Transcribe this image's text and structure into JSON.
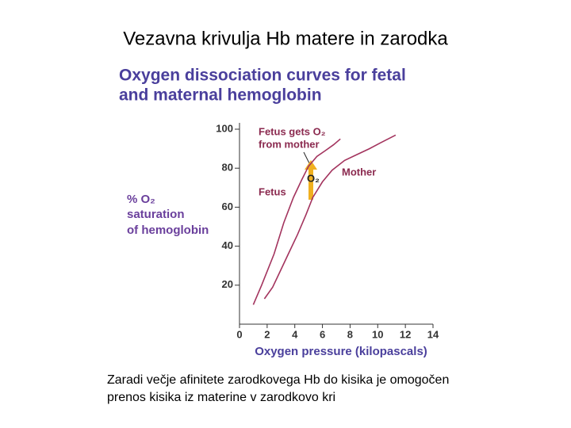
{
  "slide_title": "Vezavna krivulja Hb matere in zarodka",
  "caption": [
    "Zaradi večje afinitete zarodkovega Hb do kisika je omogočen",
    "prenos kisika iz materine v zarodkovo kri"
  ],
  "chart_data": {
    "type": "line",
    "title": [
      "Oxygen dissociation curves for fetal",
      "and maternal hemoglobin"
    ],
    "ylabel": [
      "% O₂",
      "saturation",
      "of hemoglobin"
    ],
    "xlabel": "Oxygen pressure (kilopascals)",
    "annotations": {
      "transfer": [
        "Fetus gets O₂",
        "from mother"
      ],
      "arrow": "O₂"
    },
    "series": [
      {
        "name": "Fetus",
        "color": "#a3345e",
        "x": [
          1.0,
          1.6,
          2.5,
          3.2,
          3.9,
          4.5,
          5.0,
          5.6,
          6.2,
          6.8,
          7.3
        ],
        "values": [
          10,
          20,
          36,
          52,
          65,
          74,
          81,
          86,
          89,
          92,
          95
        ]
      },
      {
        "name": "Mother",
        "color": "#a3345e",
        "x": [
          1.8,
          2.4,
          3.0,
          3.6,
          4.2,
          4.8,
          5.3,
          6.0,
          6.7,
          7.6,
          8.5,
          9.4,
          10.2,
          11.3
        ],
        "values": [
          13,
          19,
          28,
          37,
          46,
          56,
          65,
          73,
          79,
          84,
          87,
          90,
          93,
          97
        ]
      }
    ],
    "xlim": [
      0,
      14
    ],
    "xticks": [
      0,
      2,
      4,
      6,
      8,
      10,
      12,
      14
    ],
    "ylim": [
      0,
      100
    ],
    "yticks": [
      20,
      40,
      60,
      80,
      100
    ]
  }
}
